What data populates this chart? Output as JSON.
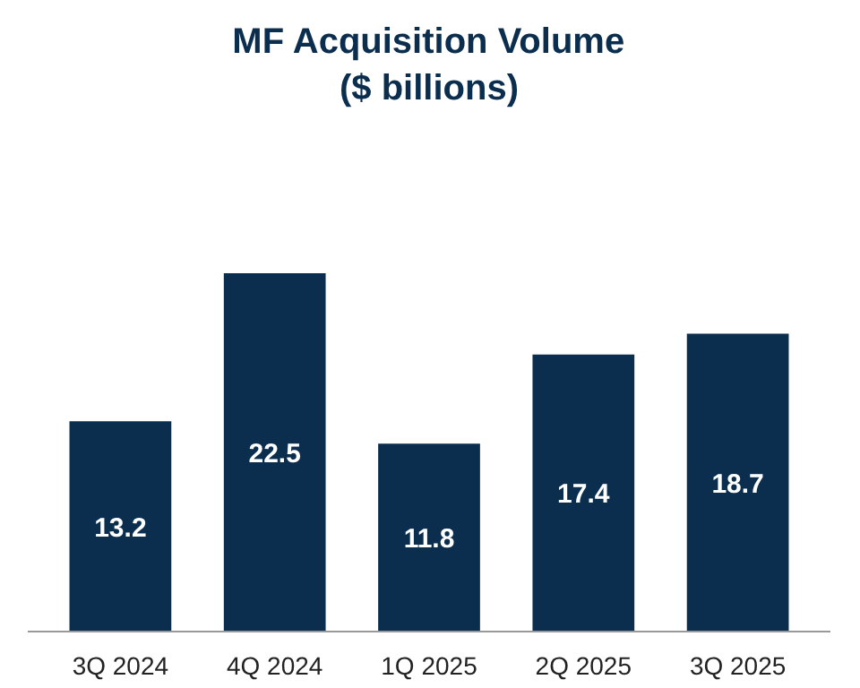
{
  "chart_data": {
    "type": "bar",
    "title": "MF Acquisition Volume\n($ billions)",
    "categories": [
      "3Q 2024",
      "4Q 2024",
      "1Q 2025",
      "2Q 2025",
      "3Q 2025"
    ],
    "values": [
      13.2,
      22.5,
      11.8,
      17.4,
      18.7
    ],
    "color": "#0b2e4f",
    "data_labels": true
  }
}
